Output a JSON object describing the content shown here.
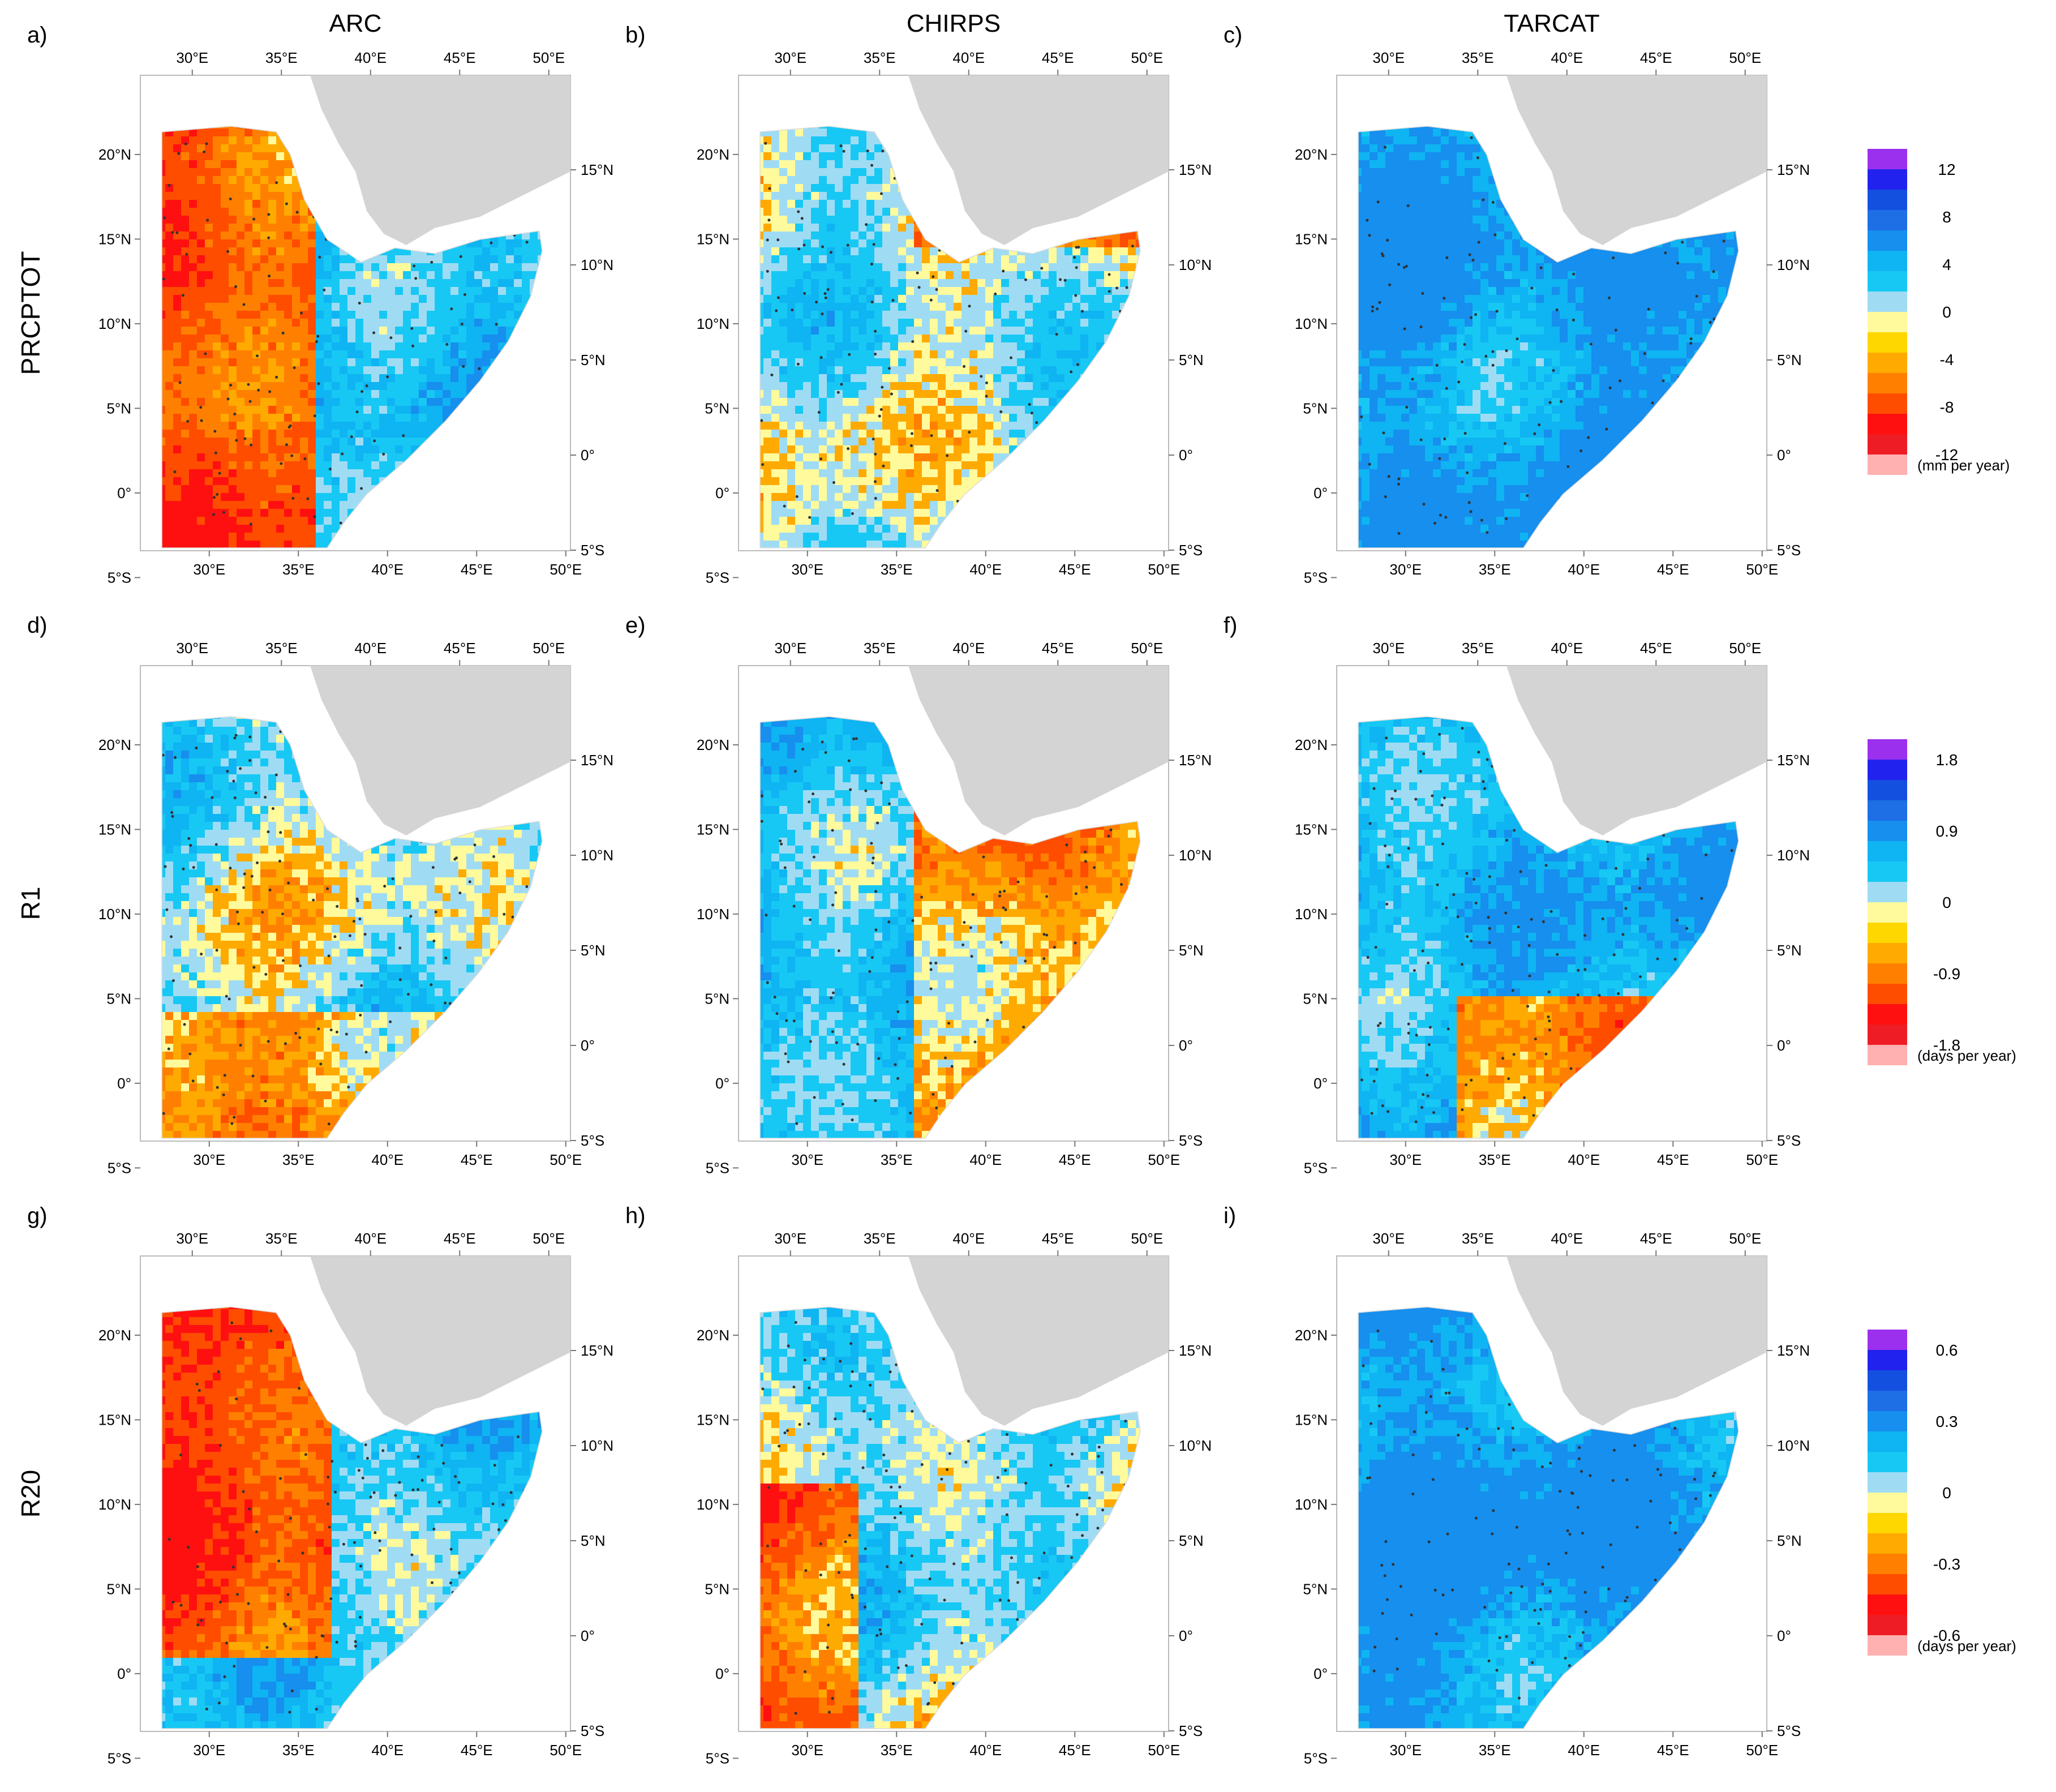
{
  "columns": [
    "ARC",
    "CHIRPS",
    "TARCAT"
  ],
  "rows": [
    "PRCPTOT",
    "R1",
    "R20"
  ],
  "panel_letters": [
    "a)",
    "b)",
    "c)",
    "d)",
    "e)",
    "f)",
    "g)",
    "h)",
    "i)"
  ],
  "axes": {
    "lon_ticks": [
      "30°E",
      "35°E",
      "40°E",
      "45°E",
      "50°E"
    ],
    "lat_left": [
      "20°N",
      "15°N",
      "10°N",
      "5°N",
      "0°",
      "5°S"
    ],
    "lat_right": [
      "15°N",
      "10°N",
      "5°N",
      "0°",
      "5°S"
    ]
  },
  "colorbars": [
    {
      "labels": [
        "12",
        "8",
        "4",
        "0",
        "-4",
        "-8",
        "-12"
      ],
      "units": "(mm per year)"
    },
    {
      "labels": [
        "1.8",
        "0.9",
        "0",
        "-0.9",
        "-1.8"
      ],
      "units": "(days per year)"
    },
    {
      "labels": [
        "0.6",
        "0.3",
        "0",
        "-0.3",
        "-0.6"
      ],
      "units": "(days per year)"
    }
  ],
  "palette": [
    "#9b30ef",
    "#2222ee",
    "#1450e0",
    "#1e6ee6",
    "#168fee",
    "#0fb4f2",
    "#17c8f4",
    "#9fdcf4",
    "#fffa9c",
    "#ffd700",
    "#ffaa00",
    "#ff8000",
    "#ff4d00",
    "#ff1010",
    "#ee1c24",
    "#ffb0b0"
  ],
  "land_gray": "#d4d4d4",
  "dot_color": "#333333"
}
